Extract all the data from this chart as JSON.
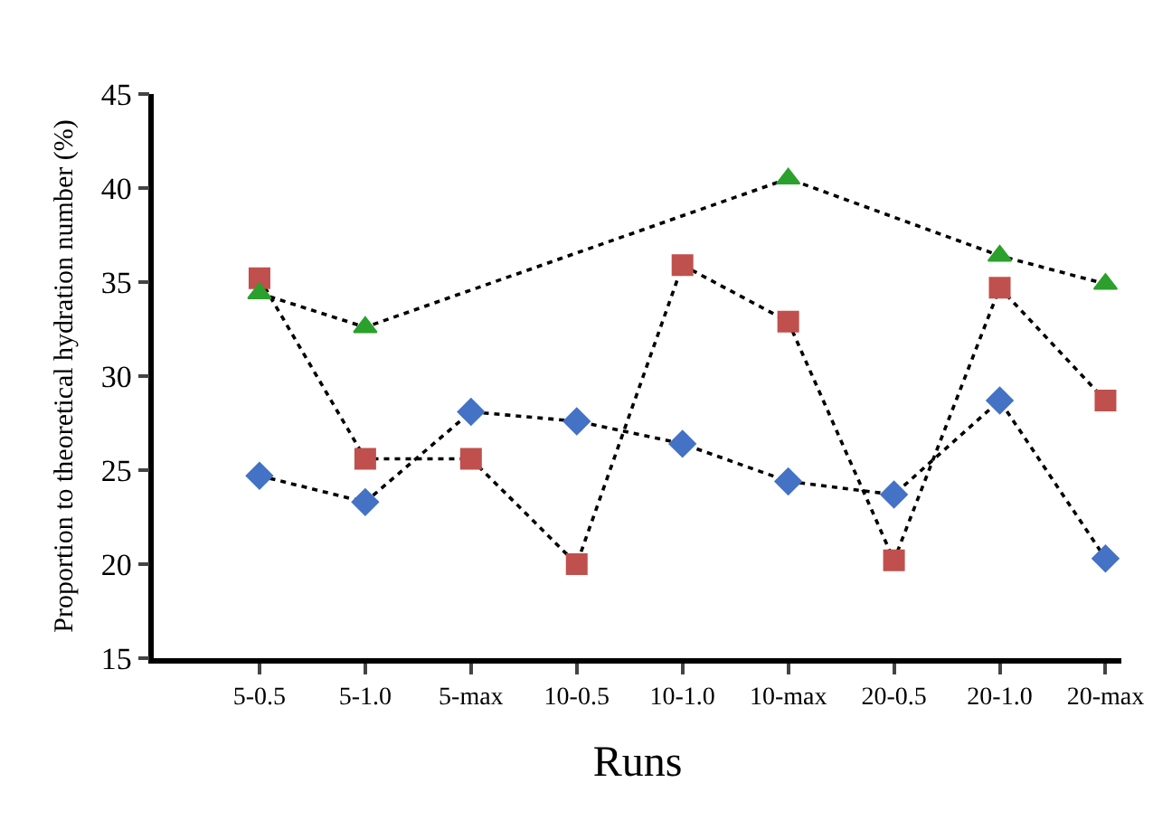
{
  "chart_data": {
    "type": "line",
    "xlabel": "Runs",
    "ylabel": "Proportion to theoretical hydration number (%)",
    "categories": [
      "5-0.5",
      "5-1.0",
      "5-max",
      "10-0.5",
      "10-1.0",
      "10-max",
      "20-0.5",
      "20-1.0",
      "20-max"
    ],
    "ylim": [
      15,
      45
    ],
    "yticks": [
      15,
      20,
      25,
      30,
      35,
      40,
      45
    ],
    "grid": false,
    "legend": false,
    "line_style": "dotted",
    "series": [
      {
        "color": "#4472c4",
        "marker": "diamond",
        "values": [
          24.7,
          23.3,
          28.1,
          27.6,
          26.4,
          24.4,
          23.7,
          28.7,
          20.3
        ]
      },
      {
        "color": "#c0504d",
        "marker": "square",
        "values": [
          35.2,
          25.6,
          25.6,
          20.0,
          35.9,
          32.9,
          20.2,
          34.7,
          28.7
        ]
      },
      {
        "color": "#2ca02c",
        "marker": "triangle",
        "values": [
          34.4,
          32.6,
          null,
          null,
          null,
          40.5,
          null,
          36.4,
          34.9
        ]
      }
    ]
  }
}
